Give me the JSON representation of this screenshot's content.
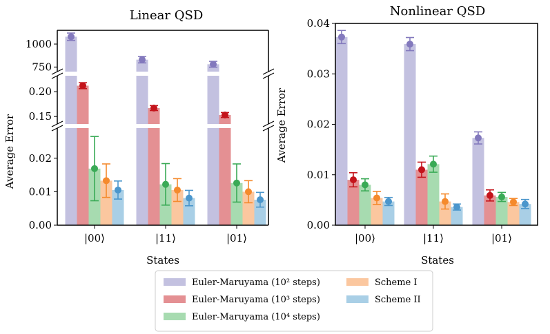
{
  "colors": {
    "em2": "#c3c1e0",
    "em3": "#e49093",
    "em4": "#a7dbb0",
    "s1": "#fbc79f",
    "s2": "#a9cfe6",
    "em2_dot": "#8379bd",
    "em3_dot": "#c4141b",
    "em4_dot": "#3aaa56",
    "s1_dot": "#f58a2c",
    "s2_dot": "#4b96cc"
  },
  "legend": {
    "items": [
      {
        "key": "em2",
        "label": "Euler-Maruyama (10² steps)"
      },
      {
        "key": "em3",
        "label": "Euler-Maruyama (10³ steps)"
      },
      {
        "key": "em4",
        "label": "Euler-Maruyama (10⁴ steps)"
      },
      {
        "key": "s1",
        "label": "Scheme I"
      },
      {
        "key": "s2",
        "label": "Scheme II"
      }
    ]
  },
  "chart_data": [
    {
      "type": "bar",
      "title": "Linear QSD",
      "xlabel": "States",
      "ylabel": "Average Error",
      "categories": [
        "|00⟩",
        "|11⟩",
        "|01⟩"
      ],
      "broken_axis": true,
      "segments": [
        {
          "ylim": [
            700,
            1150
          ],
          "ticks": [
            750,
            1000
          ],
          "tick_labels": [
            "750",
            "1000"
          ]
        },
        {
          "ylim": [
            0.135,
            0.232
          ],
          "ticks": [
            0.15,
            0.2
          ],
          "tick_labels": [
            "0.15",
            "0.20"
          ]
        },
        {
          "ylim": [
            0,
            0.029
          ],
          "ticks": [
            0.0,
            0.01,
            0.02
          ],
          "tick_labels": [
            "0.00",
            "0.01",
            "0.02"
          ]
        }
      ],
      "series": [
        {
          "name": "Euler-Maruyama (10² steps)",
          "key": "em2",
          "values": [
            1080,
            830,
            780
          ],
          "err": [
            40,
            35,
            32
          ]
        },
        {
          "name": "Euler-Maruyama (10³ steps)",
          "key": "em3",
          "values": [
            0.212,
            0.167,
            0.153
          ],
          "err": [
            0.006,
            0.005,
            0.005
          ]
        },
        {
          "name": "Euler-Maruyama (10⁴ steps)",
          "key": "em4",
          "values": [
            0.0169,
            0.0122,
            0.0126
          ],
          "err": [
            0.0096,
            0.0062,
            0.0057
          ]
        },
        {
          "name": "Scheme I",
          "key": "s1",
          "values": [
            0.0133,
            0.0105,
            0.01
          ],
          "err": [
            0.005,
            0.0034,
            0.0033
          ]
        },
        {
          "name": "Scheme II",
          "key": "s2",
          "values": [
            0.0105,
            0.0081,
            0.0076
          ],
          "err": [
            0.0027,
            0.0023,
            0.0022
          ]
        }
      ]
    },
    {
      "type": "bar",
      "title": "Nonlinear QSD",
      "xlabel": "States",
      "ylabel": "Average Error",
      "categories": [
        "|00⟩",
        "|11⟩",
        "|01⟩"
      ],
      "ylim": [
        0,
        0.04
      ],
      "ticks": [
        0.0,
        0.01,
        0.02,
        0.03,
        0.04
      ],
      "tick_labels": [
        "0.00",
        "0.01",
        "0.02",
        "0.03",
        "0.04"
      ],
      "series": [
        {
          "name": "Euler-Maruyama (10² steps)",
          "key": "em2",
          "values": [
            0.0373,
            0.0359,
            0.0173
          ],
          "err": [
            0.0013,
            0.0013,
            0.0012
          ]
        },
        {
          "name": "Euler-Maruyama (10³ steps)",
          "key": "em3",
          "values": [
            0.009,
            0.011,
            0.0059
          ],
          "err": [
            0.0014,
            0.0015,
            0.0011
          ]
        },
        {
          "name": "Euler-Maruyama (10⁴ steps)",
          "key": "em4",
          "values": [
            0.008,
            0.0121,
            0.0056
          ],
          "err": [
            0.0012,
            0.0016,
            0.0009
          ]
        },
        {
          "name": "Scheme I",
          "key": "s1",
          "values": [
            0.0054,
            0.0047,
            0.0046
          ],
          "err": [
            0.0013,
            0.0015,
            0.0007
          ]
        },
        {
          "name": "Scheme II",
          "key": "s2",
          "values": [
            0.0047,
            0.0036,
            0.0042
          ],
          "err": [
            0.0008,
            0.0006,
            0.0009
          ]
        }
      ]
    }
  ]
}
